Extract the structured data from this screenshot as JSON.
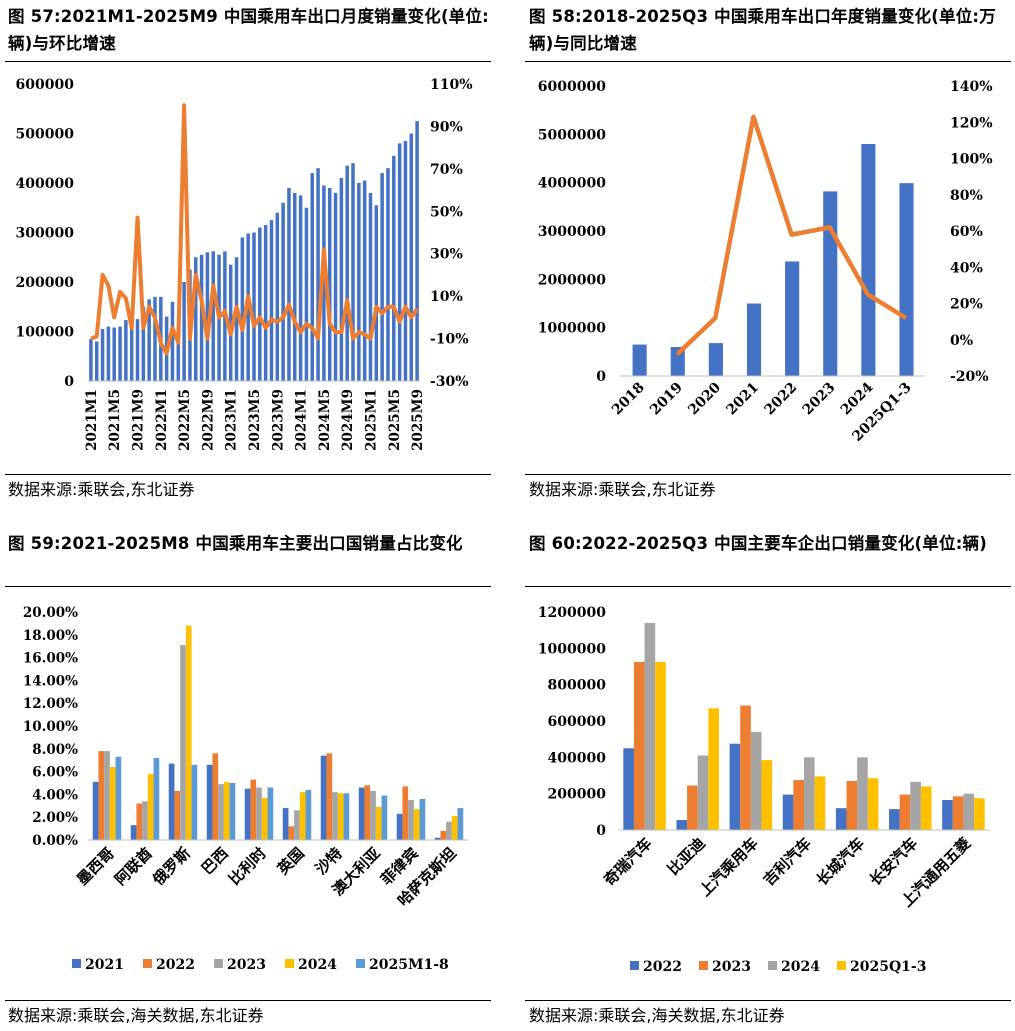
{
  "figures": [
    {
      "title": "图 57:2021M1-2025M9 中国乘用车出口月度销量变化(单位:辆)与环比增速",
      "source": "数据来源:乘联会,东北证券"
    },
    {
      "title": "图 58:2018-2025Q3 中国乘用车出口年度销量变化(单位:万辆)与同比增速",
      "source": "数据来源:乘联会,东北证券"
    },
    {
      "title": "图 59:2021-2025M8 中国乘用车主要出口国销量占比变化",
      "source": "数据来源:乘联会,海关数据,东北证券"
    },
    {
      "title": "图 60:2022-2025Q3 中国主要车企出口销量变化(单位:辆)",
      "source": "数据来源:乘联会,海关数据,东北证券"
    }
  ],
  "colors": {
    "bar_blue": "#4472C4",
    "line_orange": "#ED7D31",
    "gray": "#A5A5A5",
    "gold": "#FFC000",
    "light_blue": "#5B9BD5"
  },
  "chart_data": [
    {
      "type": "bar+line",
      "title": "2021M1-2025M9 中国乘用车出口月度销量变化(单位:辆)与环比增速",
      "ylim": [
        0,
        600000
      ],
      "y_ticks": [
        "0",
        "100000",
        "200000",
        "300000",
        "400000",
        "500000",
        "600000"
      ],
      "y2lim": [
        -30,
        110
      ],
      "y2_ticks": [
        "-30%",
        "-10%",
        "10%",
        "30%",
        "50%",
        "70%",
        "90%",
        "110%"
      ],
      "x_tick_labels": [
        "2021M1",
        "2021M5",
        "2021M9",
        "2022M1",
        "2022M5",
        "2022M9",
        "2023M1",
        "2023M5",
        "2023M9",
        "2024M1",
        "2024M5",
        "2024M9",
        "2025M1",
        "2025M5",
        "2025M9"
      ],
      "months": [
        "2021M1",
        "2021M2",
        "2021M3",
        "2021M4",
        "2021M5",
        "2021M6",
        "2021M7",
        "2021M8",
        "2021M9",
        "2021M10",
        "2021M11",
        "2021M12",
        "2022M1",
        "2022M2",
        "2022M3",
        "2022M4",
        "2022M5",
        "2022M6",
        "2022M7",
        "2022M8",
        "2022M9",
        "2022M10",
        "2022M11",
        "2022M12",
        "2023M1",
        "2023M2",
        "2023M3",
        "2023M4",
        "2023M5",
        "2023M6",
        "2023M7",
        "2023M8",
        "2023M9",
        "2023M10",
        "2023M11",
        "2023M12",
        "2024M1",
        "2024M2",
        "2024M3",
        "2024M4",
        "2024M5",
        "2024M6",
        "2024M7",
        "2024M8",
        "2024M9",
        "2024M10",
        "2024M11",
        "2024M12",
        "2025M1",
        "2025M2",
        "2025M3",
        "2025M4",
        "2025M5",
        "2025M6",
        "2025M7",
        "2025M8",
        "2025M9"
      ],
      "series": [
        {
          "name": "出口销量",
          "kind": "bar",
          "axis": "left",
          "values": [
            85000,
            80000,
            105000,
            110000,
            108000,
            110000,
            123000,
            132000,
            125000,
            150000,
            165000,
            170000,
            170000,
            130000,
            160000,
            105000,
            200000,
            225000,
            250000,
            255000,
            260000,
            262000,
            255000,
            262000,
            235000,
            250000,
            290000,
            298000,
            300000,
            310000,
            315000,
            325000,
            340000,
            360000,
            390000,
            380000,
            375000,
            350000,
            420000,
            430000,
            395000,
            390000,
            380000,
            410000,
            435000,
            440000,
            400000,
            405000,
            380000,
            355000,
            420000,
            430000,
            455000,
            480000,
            485000,
            500000,
            525000
          ]
        },
        {
          "name": "环比增速",
          "kind": "line",
          "axis": "right",
          "values": [
            -10,
            -9,
            20,
            15,
            0,
            12,
            9,
            -5,
            47,
            -5,
            5,
            0,
            -12,
            -17,
            -5,
            -12,
            100,
            -10,
            20,
            8,
            -10,
            15,
            0,
            3,
            -8,
            5,
            -6,
            10,
            -4,
            0,
            -5,
            -1,
            -2,
            0,
            6,
            -2,
            -7,
            -3,
            -5,
            -10,
            32,
            -3,
            -7,
            -7,
            8,
            -10,
            -7,
            -8,
            -10,
            5,
            2,
            5,
            5,
            -2,
            5,
            0,
            4
          ]
        }
      ]
    },
    {
      "type": "bar+line",
      "title": "2018-2025Q3 中国乘用车出口年度销量变化(单位:万辆)与同比增速",
      "categories": [
        "2018",
        "2019",
        "2020",
        "2021",
        "2022",
        "2023",
        "2024",
        "2025Q1-3"
      ],
      "ylim": [
        0,
        6000000
      ],
      "y_ticks": [
        "0",
        "1000000",
        "2000000",
        "3000000",
        "4000000",
        "5000000",
        "6000000"
      ],
      "y2lim": [
        -20,
        140
      ],
      "y2_ticks": [
        "-20%",
        "0%",
        "20%",
        "40%",
        "60%",
        "80%",
        "100%",
        "120%",
        "140%"
      ],
      "series": [
        {
          "name": "年度销量",
          "kind": "bar",
          "axis": "left",
          "values": [
            650000,
            600000,
            680000,
            1500000,
            2370000,
            3820000,
            4800000,
            3990000
          ]
        },
        {
          "name": "同比增速",
          "kind": "line",
          "axis": "right",
          "values": [
            null,
            -8,
            12,
            123,
            58,
            62,
            25,
            12
          ]
        }
      ]
    },
    {
      "type": "bar",
      "title": "2021-2025M8 中国乘用车主要出口国销量占比变化",
      "categories": [
        "墨西哥",
        "阿联酋",
        "俄罗斯",
        "巴西",
        "比利时",
        "英国",
        "沙特",
        "澳大利亚",
        "菲律宾",
        "哈萨克斯坦"
      ],
      "ylim": [
        0,
        20
      ],
      "y_ticks": [
        "0.00%",
        "2.00%",
        "4.00%",
        "6.00%",
        "8.00%",
        "10.00%",
        "12.00%",
        "14.00%",
        "16.00%",
        "18.00%",
        "20.00%"
      ],
      "legend": [
        "2021",
        "2022",
        "2023",
        "2024",
        "2025M1-8"
      ],
      "series": [
        {
          "name": "2021",
          "values": [
            5.1,
            1.3,
            6.7,
            6.6,
            4.5,
            2.8,
            7.4,
            4.6,
            2.3,
            0.2
          ]
        },
        {
          "name": "2022",
          "values": [
            7.8,
            3.2,
            4.3,
            7.6,
            5.3,
            1.2,
            7.6,
            4.8,
            4.7,
            0.8
          ]
        },
        {
          "name": "2023",
          "values": [
            7.8,
            3.4,
            17.1,
            4.9,
            4.6,
            2.6,
            4.2,
            4.3,
            3.5,
            1.6
          ]
        },
        {
          "name": "2024",
          "values": [
            6.4,
            5.8,
            18.8,
            5.1,
            3.7,
            4.2,
            4.1,
            2.9,
            2.7,
            2.1
          ]
        },
        {
          "name": "2025M1-8",
          "values": [
            7.3,
            7.2,
            6.6,
            5.0,
            4.6,
            4.4,
            4.1,
            3.9,
            3.6,
            2.8
          ]
        }
      ]
    },
    {
      "type": "bar",
      "title": "2022-2025Q3 中国主要车企出口销量变化(单位:辆)",
      "categories": [
        "奇瑞汽车",
        "比亚迪",
        "上汽乘用车",
        "吉利汽车",
        "长城汽车",
        "长安汽车",
        "上汽通用五菱"
      ],
      "ylim": [
        0,
        1200000
      ],
      "y_ticks": [
        "0",
        "200000",
        "400000",
        "600000",
        "800000",
        "1000000",
        "1200000"
      ],
      "legend": [
        "2022",
        "2023",
        "2024",
        "2025Q1-3"
      ],
      "series": [
        {
          "name": "2022",
          "values": [
            450000,
            55000,
            475000,
            195000,
            120000,
            115000,
            165000
          ]
        },
        {
          "name": "2023",
          "values": [
            925000,
            245000,
            685000,
            275000,
            270000,
            195000,
            185000
          ]
        },
        {
          "name": "2024",
          "values": [
            1140000,
            410000,
            540000,
            400000,
            400000,
            265000,
            200000
          ]
        },
        {
          "name": "2025Q1-3",
          "values": [
            925000,
            670000,
            385000,
            295000,
            285000,
            240000,
            175000
          ]
        }
      ]
    }
  ]
}
